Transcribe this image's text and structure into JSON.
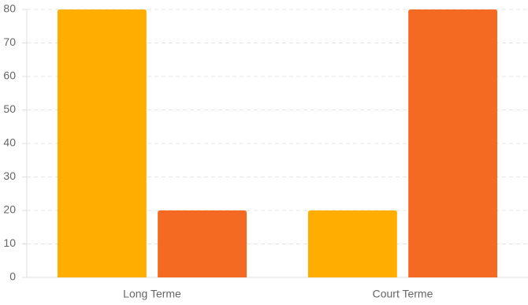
{
  "chart_data": {
    "type": "bar",
    "categories": [
      "Long Terme",
      "Court Terme"
    ],
    "series": [
      {
        "color": "#ffae00",
        "values": [
          80,
          20
        ]
      },
      {
        "color": "#f46a22",
        "values": [
          20,
          80
        ]
      }
    ],
    "ylim": [
      0,
      80
    ],
    "yticks": [
      0,
      10,
      20,
      30,
      40,
      50,
      60,
      70,
      80
    ],
    "grid": true
  }
}
